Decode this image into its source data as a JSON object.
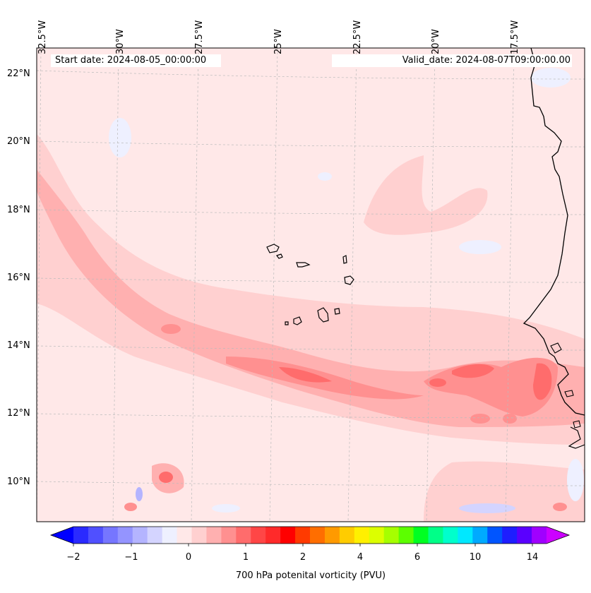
{
  "map": {
    "start_label": "Start date: 2024-08-05_00:00:00",
    "valid_label": "Valid_date: 2024-08-07T09:00:00.00",
    "lon_labels": [
      "32.5°W",
      "30°W",
      "27.5°W",
      "25°W",
      "22.5°W",
      "20°W",
      "17.5°W"
    ],
    "lat_labels": [
      "22°N",
      "20°N",
      "18°N",
      "16°N",
      "14°N",
      "12°N",
      "10°N"
    ],
    "field": "700 hPa potential vorticity"
  },
  "colorbar": {
    "label": "700 hPa potenital vorticity (PVU)",
    "ticks": [
      "−2",
      "−1",
      "0",
      "1",
      "2",
      "4",
      "6",
      "10",
      "14"
    ],
    "colors": [
      "#0000ff",
      "#2a2aff",
      "#5050ff",
      "#7676ff",
      "#9494ff",
      "#b4b4ff",
      "#d4d4ff",
      "#eef0ff",
      "#ffe8e8",
      "#ffd0d0",
      "#ffb0b0",
      "#ff9090",
      "#ff6c6c",
      "#ff4646",
      "#ff2a2a",
      "#ff0000",
      "#ff3a00",
      "#ff6e00",
      "#ff9a00",
      "#ffcc00",
      "#fff000",
      "#dcff00",
      "#a6ff00",
      "#5cff00",
      "#00ff22",
      "#00ff88",
      "#00ffcc",
      "#00e8ff",
      "#00aaff",
      "#0055ff",
      "#1e1eff",
      "#5a00ff",
      "#a000ff",
      "#cc00ff"
    ]
  }
}
